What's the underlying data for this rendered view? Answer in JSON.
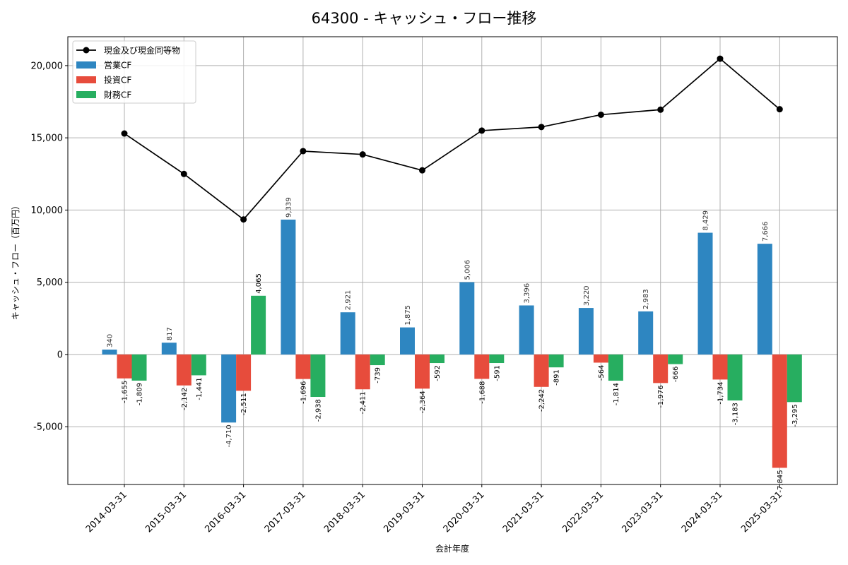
{
  "chart_data": {
    "type": "bar",
    "title": "64300 - キャッシュ・フロー推移",
    "xlabel": "会計年度",
    "ylabel": "キャッシュ・フロー（百万円）",
    "ylim": [
      -9000,
      22000
    ],
    "yticks": [
      -5000,
      0,
      5000,
      10000,
      15000,
      20000
    ],
    "ytick_labels": [
      "-5,000",
      "0",
      "5,000",
      "10,000",
      "15,000",
      "20,000"
    ],
    "grid": true,
    "legend_position": "top-left",
    "categories": [
      "2014-03-31",
      "2015-03-31",
      "2016-03-31",
      "2017-03-31",
      "2018-03-31",
      "2019-03-31",
      "2020-03-31",
      "2021-03-31",
      "2022-03-31",
      "2023-03-31",
      "2024-03-31",
      "2025-03-31"
    ],
    "series": [
      {
        "name": "営業CF",
        "kind": "bar",
        "color": "#2e86c1",
        "values": [
          340,
          817,
          -4710,
          9339,
          2921,
          1875,
          5006,
          3396,
          3220,
          2983,
          8429,
          7666
        ],
        "labels": [
          "340",
          "817",
          "-4,710",
          "9,339",
          "2,921",
          "1,875",
          "5,006",
          "3,396",
          "3,220",
          "2,983",
          "8,429",
          "7,666"
        ]
      },
      {
        "name": "投資CF",
        "kind": "bar",
        "color": "#e74c3c",
        "values": [
          -1655,
          -2142,
          -2511,
          -1696,
          -2411,
          -2364,
          -1688,
          -2242,
          -564,
          -1976,
          -1734,
          -7845
        ],
        "labels": [
          "-1,655",
          "-2,142",
          "-2,511",
          "-1,696",
          "-2,411",
          "-2,364",
          "-1,688",
          "-2,242",
          "-564",
          "-1,976",
          "-1,734",
          "-7,845"
        ]
      },
      {
        "name": "財務CF",
        "kind": "bar",
        "color": "#27ae60",
        "values": [
          -1809,
          -1441,
          4065,
          -2938,
          -739,
          -592,
          -591,
          -891,
          -1814,
          -666,
          -3183,
          -3295
        ],
        "labels": [
          "-1,809",
          "-1,441",
          "4,065",
          "-2,938",
          "-739",
          "-592",
          "-591",
          "-891",
          "-1,814",
          "-666",
          "-3,183",
          "-3,295"
        ]
      },
      {
        "name": "現金及び現金同等物",
        "kind": "line",
        "color": "#000000",
        "values": [
          15300,
          12500,
          9350,
          14080,
          13850,
          12750,
          15500,
          15750,
          16600,
          16950,
          20480,
          16980
        ]
      }
    ]
  }
}
